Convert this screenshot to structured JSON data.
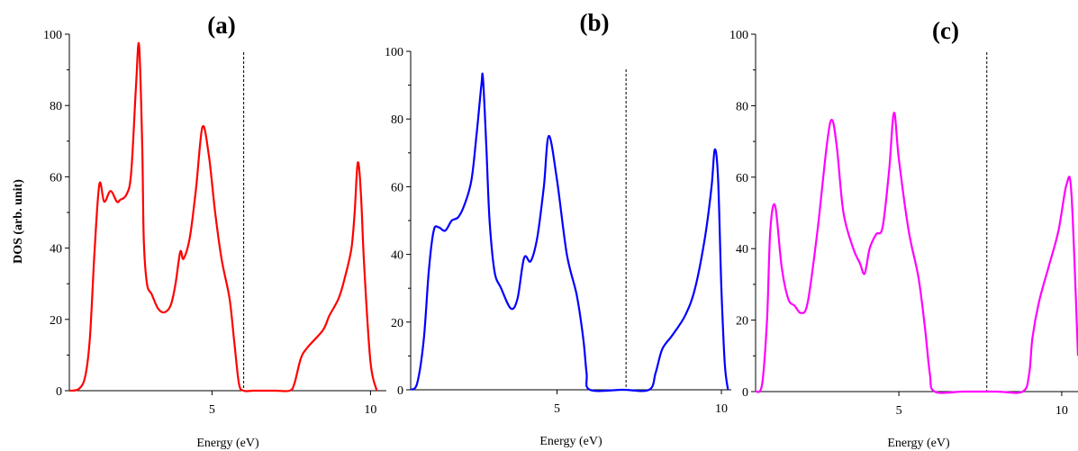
{
  "figure": {
    "ylabel": "DOS (arb. unit)"
  },
  "chart_data": [
    {
      "type": "line",
      "panel_label": "(a)",
      "xlabel": "Energy (eV)",
      "ylabel": "DOS (arb. unit)",
      "xlim": [
        0.5,
        10.5
      ],
      "ylim": [
        0,
        100
      ],
      "xticks": [
        "5",
        "10"
      ],
      "xtick_values": [
        5,
        10
      ],
      "yticks": [
        "0",
        "20",
        "40",
        "60",
        "80",
        "100"
      ],
      "ytick_values": [
        0,
        20,
        40,
        60,
        80,
        100
      ],
      "fermi_level": 6.0,
      "series": [
        {
          "color": "#ff0000",
          "x": [
            0.5,
            0.8,
            1.0,
            1.15,
            1.3,
            1.45,
            1.6,
            1.8,
            2.0,
            2.1,
            2.3,
            2.45,
            2.6,
            2.7,
            2.8,
            2.85,
            2.95,
            3.1,
            3.3,
            3.5,
            3.7,
            3.85,
            4.0,
            4.1,
            4.3,
            4.5,
            4.7,
            4.9,
            5.1,
            5.3,
            5.55,
            5.7,
            5.85,
            6.0,
            6.3,
            7.0,
            7.45,
            7.6,
            7.8,
            8.0,
            8.5,
            8.7,
            9.0,
            9.2,
            9.4,
            9.5,
            9.6,
            9.7,
            9.8,
            10.0,
            10.2
          ],
          "y": [
            0,
            0.5,
            4,
            15,
            40,
            58,
            53,
            56,
            53,
            53.5,
            55,
            61,
            85,
            97,
            68,
            42,
            30,
            27,
            23,
            22,
            24,
            30,
            39,
            37,
            43,
            57,
            74,
            66,
            50,
            37,
            26,
            14,
            2,
            0,
            0,
            0,
            0,
            2,
            9,
            12,
            17,
            21,
            26,
            32,
            40,
            50,
            64,
            55,
            35,
            8,
            0
          ]
        }
      ]
    },
    {
      "type": "line",
      "panel_label": "(b)",
      "xlabel": "Energy (eV)",
      "xlim": [
        0.55,
        10.3
      ],
      "ylim": [
        0,
        100
      ],
      "xticks": [
        "5",
        "10"
      ],
      "xtick_values": [
        5,
        10
      ],
      "yticks": [
        "0",
        "20",
        "40",
        "60",
        "80",
        "100"
      ],
      "ytick_values": [
        0,
        20,
        40,
        60,
        80,
        100
      ],
      "fermi_level": 7.1,
      "series": [
        {
          "color": "#0000ff",
          "x": [
            0.55,
            0.75,
            0.95,
            1.1,
            1.25,
            1.4,
            1.6,
            1.8,
            2.0,
            2.2,
            2.4,
            2.55,
            2.7,
            2.75,
            2.85,
            2.95,
            3.1,
            3.3,
            3.6,
            3.8,
            4.0,
            4.2,
            4.4,
            4.6,
            4.75,
            5.0,
            5.3,
            5.6,
            5.8,
            5.9,
            6.0,
            7.0,
            7.8,
            8.0,
            8.2,
            8.5,
            8.9,
            9.2,
            9.5,
            9.7,
            9.8,
            9.9,
            10.0,
            10.1,
            10.2
          ],
          "y": [
            0,
            2,
            15,
            35,
            47,
            48,
            47,
            50,
            51,
            55,
            62,
            75,
            90,
            92,
            72,
            50,
            35,
            30,
            24,
            27,
            39,
            38,
            45,
            60,
            75,
            62,
            40,
            28,
            15,
            5,
            0,
            0,
            0,
            5,
            12,
            16,
            22,
            30,
            45,
            60,
            71,
            62,
            30,
            8,
            0
          ]
        }
      ]
    },
    {
      "type": "line",
      "panel_label": "(c)",
      "xlabel": "Energy (eV)",
      "xlim": [
        0.6,
        10.5
      ],
      "ylim": [
        0,
        100
      ],
      "xticks": [
        "5",
        "10"
      ],
      "xtick_values": [
        5,
        10
      ],
      "yticks": [
        "0",
        "20",
        "40",
        "60",
        "80",
        "100"
      ],
      "ytick_values": [
        0,
        20,
        40,
        60,
        80,
        100
      ],
      "fermi_level": 7.7,
      "series": [
        {
          "color": "#ff00ff",
          "x": [
            0.6,
            0.8,
            0.95,
            1.05,
            1.2,
            1.4,
            1.6,
            1.8,
            2.0,
            2.2,
            2.5,
            2.8,
            2.95,
            3.1,
            3.3,
            3.6,
            3.8,
            3.95,
            4.1,
            4.3,
            4.5,
            4.7,
            4.85,
            5.0,
            5.3,
            5.6,
            5.8,
            5.95,
            6.1,
            7.0,
            8.0,
            8.8,
            9.0,
            9.1,
            9.3,
            9.6,
            9.9,
            10.15,
            10.3,
            10.5
          ],
          "y": [
            0,
            2,
            20,
            45,
            52,
            35,
            26,
            24,
            22,
            25,
            45,
            70,
            76,
            68,
            50,
            40,
            36,
            33,
            40,
            44,
            46,
            62,
            78,
            65,
            45,
            32,
            18,
            5,
            0,
            0,
            0,
            0,
            5,
            15,
            25,
            35,
            45,
            58,
            55,
            10
          ]
        }
      ]
    }
  ]
}
